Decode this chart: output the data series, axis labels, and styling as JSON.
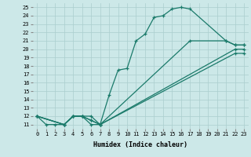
{
  "xlabel": "Humidex (Indice chaleur)",
  "bg_color": "#cce8e8",
  "line_color": "#1a7a6a",
  "grid_color": "#aacece",
  "xlim": [
    -0.5,
    23.5
  ],
  "ylim": [
    10.5,
    25.5
  ],
  "xticks": [
    0,
    1,
    2,
    3,
    4,
    5,
    6,
    7,
    8,
    9,
    10,
    11,
    12,
    13,
    14,
    15,
    16,
    17,
    18,
    19,
    20,
    21,
    22,
    23
  ],
  "yticks": [
    11,
    12,
    13,
    14,
    15,
    16,
    17,
    18,
    19,
    20,
    21,
    22,
    23,
    24,
    25
  ],
  "lines": [
    {
      "x": [
        0,
        1,
        2,
        3,
        4,
        5,
        6,
        7,
        8,
        9,
        10,
        11,
        12,
        13,
        14,
        15,
        16,
        17,
        21,
        22,
        23
      ],
      "y": [
        12,
        11,
        11,
        11,
        12,
        12,
        11,
        11,
        14.5,
        17.5,
        17.7,
        21,
        21.8,
        23.8,
        24,
        24.8,
        25,
        24.8,
        21,
        20.5,
        20.5
      ]
    },
    {
      "x": [
        0,
        3,
        4,
        5,
        6,
        7,
        17,
        21,
        22,
        23
      ],
      "y": [
        12,
        11,
        12,
        12,
        12,
        11,
        21,
        21,
        20.5,
        20.5
      ]
    },
    {
      "x": [
        0,
        3,
        4,
        5,
        6,
        7,
        22,
        23
      ],
      "y": [
        12,
        11,
        12,
        12,
        11.5,
        11,
        20,
        20
      ]
    },
    {
      "x": [
        0,
        3,
        4,
        5,
        6,
        7,
        22,
        23
      ],
      "y": [
        12,
        11,
        12,
        12,
        11.5,
        11,
        19.5,
        19.5
      ]
    }
  ],
  "marker": "+",
  "markersize": 3.5,
  "linewidth": 0.9,
  "tick_fontsize": 5.0,
  "xlabel_fontsize": 6.0
}
